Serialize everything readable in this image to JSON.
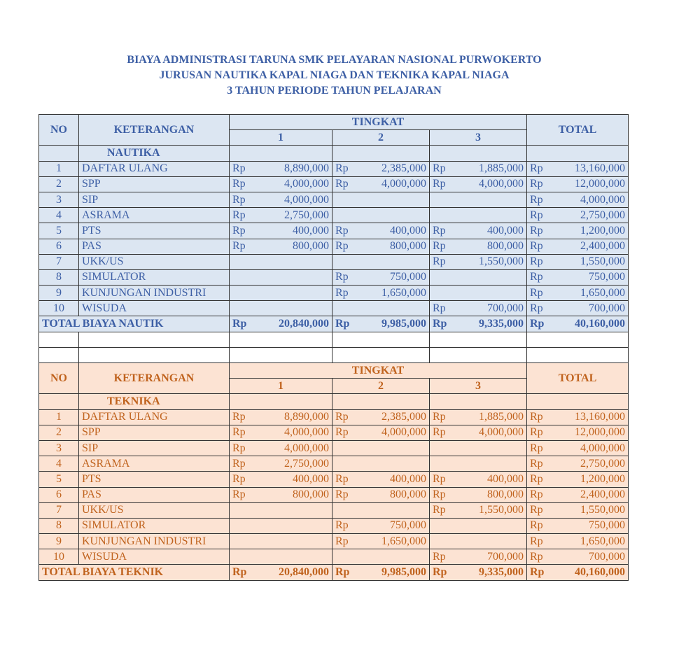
{
  "title": [
    "BIAYA ADMINISTRASI TARUNA SMK PELAYARAN NASIONAL PURWOKERTO",
    "JURUSAN NAUTIKA KAPAL NIAGA DAN TEKNIKA KAPAL NIAGA",
    "3 TAHUN PERIODE TAHUN PELAJARAN"
  ],
  "tables": [
    {
      "header": {
        "no": "NO",
        "keterangan": "KETERANGAN",
        "tingkat": "TINGKAT",
        "levels": [
          "1",
          "2",
          "3"
        ],
        "total": "TOTAL"
      },
      "section": "NAUTIKA",
      "rows": [
        {
          "no": "1",
          "label": "DAFTAR ULANG",
          "cells": [
            {
              "currency": "Rp",
              "amount": "8,890,000"
            },
            {
              "currency": "Rp",
              "amount": "2,385,000"
            },
            {
              "currency": "Rp",
              "amount": "1,885,000"
            },
            {
              "currency": "Rp",
              "amount": "13,160,000"
            }
          ]
        },
        {
          "no": "2",
          "label": "SPP",
          "cells": [
            {
              "currency": "Rp",
              "amount": "4,000,000"
            },
            {
              "currency": "Rp",
              "amount": "4,000,000"
            },
            {
              "currency": "Rp",
              "amount": "4,000,000"
            },
            {
              "currency": "Rp",
              "amount": "12,000,000"
            }
          ]
        },
        {
          "no": "3",
          "label": "SIP",
          "cells": [
            {
              "currency": "Rp",
              "amount": "4,000,000"
            },
            null,
            null,
            {
              "currency": "Rp",
              "amount": "4,000,000"
            }
          ]
        },
        {
          "no": "4",
          "label": "ASRAMA",
          "cells": [
            {
              "currency": "Rp",
              "amount": "2,750,000"
            },
            null,
            null,
            {
              "currency": "Rp",
              "amount": "2,750,000"
            }
          ]
        },
        {
          "no": "5",
          "label": "PTS",
          "cells": [
            {
              "currency": "Rp",
              "amount": "400,000"
            },
            {
              "currency": "Rp",
              "amount": "400,000"
            },
            {
              "currency": "Rp",
              "amount": "400,000"
            },
            {
              "currency": "Rp",
              "amount": "1,200,000"
            }
          ]
        },
        {
          "no": "6",
          "label": "PAS",
          "cells": [
            {
              "currency": "Rp",
              "amount": "800,000"
            },
            {
              "currency": "Rp",
              "amount": "800,000"
            },
            {
              "currency": "Rp",
              "amount": "800,000"
            },
            {
              "currency": "Rp",
              "amount": "2,400,000"
            }
          ]
        },
        {
          "no": "7",
          "label": "UKK/US",
          "cells": [
            null,
            null,
            {
              "currency": "Rp",
              "amount": "1,550,000"
            },
            {
              "currency": "Rp",
              "amount": "1,550,000"
            }
          ]
        },
        {
          "no": "8",
          "label": "SIMULATOR",
          "cells": [
            null,
            {
              "currency": "Rp",
              "amount": "750,000"
            },
            null,
            {
              "currency": "Rp",
              "amount": "750,000"
            }
          ]
        },
        {
          "no": "9",
          "label": "KUNJUNGAN INDUSTRI",
          "cells": [
            null,
            {
              "currency": "Rp",
              "amount": "1,650,000"
            },
            null,
            {
              "currency": "Rp",
              "amount": "1,650,000"
            }
          ]
        },
        {
          "no": "10",
          "label": "WISUDA",
          "cells": [
            null,
            null,
            {
              "currency": "Rp",
              "amount": "700,000"
            },
            {
              "currency": "Rp",
              "amount": "700,000"
            }
          ]
        }
      ],
      "total": {
        "label": "TOTAL BIAYA NAUTIK",
        "cells": [
          {
            "currency": "Rp",
            "amount": "20,840,000"
          },
          {
            "currency": "Rp",
            "amount": "9,985,000"
          },
          {
            "currency": "Rp",
            "amount": "9,335,000"
          },
          {
            "currency": "Rp",
            "amount": "40,160,000"
          }
        ]
      }
    },
    {
      "header": {
        "no": "NO",
        "keterangan": "KETERANGAN",
        "tingkat": "TINGKAT",
        "levels": [
          "1",
          "2",
          "3"
        ],
        "total": "TOTAL"
      },
      "section": "TEKNIKA",
      "rows": [
        {
          "no": "1",
          "label": "DAFTAR ULANG",
          "cells": [
            {
              "currency": "Rp",
              "amount": "8,890,000"
            },
            {
              "currency": "Rp",
              "amount": "2,385,000"
            },
            {
              "currency": "Rp",
              "amount": "1,885,000"
            },
            {
              "currency": "Rp",
              "amount": "13,160,000"
            }
          ]
        },
        {
          "no": "2",
          "label": "SPP",
          "cells": [
            {
              "currency": "Rp",
              "amount": "4,000,000"
            },
            {
              "currency": "Rp",
              "amount": "4,000,000"
            },
            {
              "currency": "Rp",
              "amount": "4,000,000"
            },
            {
              "currency": "Rp",
              "amount": "12,000,000"
            }
          ]
        },
        {
          "no": "3",
          "label": "SIP",
          "cells": [
            {
              "currency": "Rp",
              "amount": "4,000,000"
            },
            null,
            null,
            {
              "currency": "Rp",
              "amount": "4,000,000"
            }
          ]
        },
        {
          "no": "4",
          "label": "ASRAMA",
          "cells": [
            {
              "currency": "Rp",
              "amount": "2,750,000"
            },
            null,
            null,
            {
              "currency": "Rp",
              "amount": "2,750,000"
            }
          ]
        },
        {
          "no": "5",
          "label": "PTS",
          "cells": [
            {
              "currency": "Rp",
              "amount": "400,000"
            },
            {
              "currency": "Rp",
              "amount": "400,000"
            },
            {
              "currency": "Rp",
              "amount": "400,000"
            },
            {
              "currency": "Rp",
              "amount": "1,200,000"
            }
          ]
        },
        {
          "no": "6",
          "label": "PAS",
          "cells": [
            {
              "currency": "Rp",
              "amount": "800,000"
            },
            {
              "currency": "Rp",
              "amount": "800,000"
            },
            {
              "currency": "Rp",
              "amount": "800,000"
            },
            {
              "currency": "Rp",
              "amount": "2,400,000"
            }
          ]
        },
        {
          "no": "7",
          "label": "UKK/US",
          "cells": [
            null,
            null,
            {
              "currency": "Rp",
              "amount": "1,550,000"
            },
            {
              "currency": "Rp",
              "amount": "1,550,000"
            }
          ]
        },
        {
          "no": "8",
          "label": "SIMULATOR",
          "cells": [
            null,
            {
              "currency": "Rp",
              "amount": "750,000"
            },
            null,
            {
              "currency": "Rp",
              "amount": "750,000"
            }
          ]
        },
        {
          "no": "9",
          "label": "KUNJUNGAN INDUSTRI",
          "cells": [
            null,
            {
              "currency": "Rp",
              "amount": "1,650,000"
            },
            null,
            {
              "currency": "Rp",
              "amount": "1,650,000"
            }
          ]
        },
        {
          "no": "10",
          "label": "WISUDA",
          "cells": [
            null,
            null,
            {
              "currency": "Rp",
              "amount": "700,000"
            },
            {
              "currency": "Rp",
              "amount": "700,000"
            }
          ]
        }
      ],
      "total": {
        "label": "TOTAL BIAYA TEKNIK",
        "cells": [
          {
            "currency": "Rp",
            "amount": "20,840,000"
          },
          {
            "currency": "Rp",
            "amount": "9,985,000"
          },
          {
            "currency": "Rp",
            "amount": "9,335,000"
          },
          {
            "currency": "Rp",
            "amount": "40,160,000"
          }
        ]
      }
    }
  ]
}
